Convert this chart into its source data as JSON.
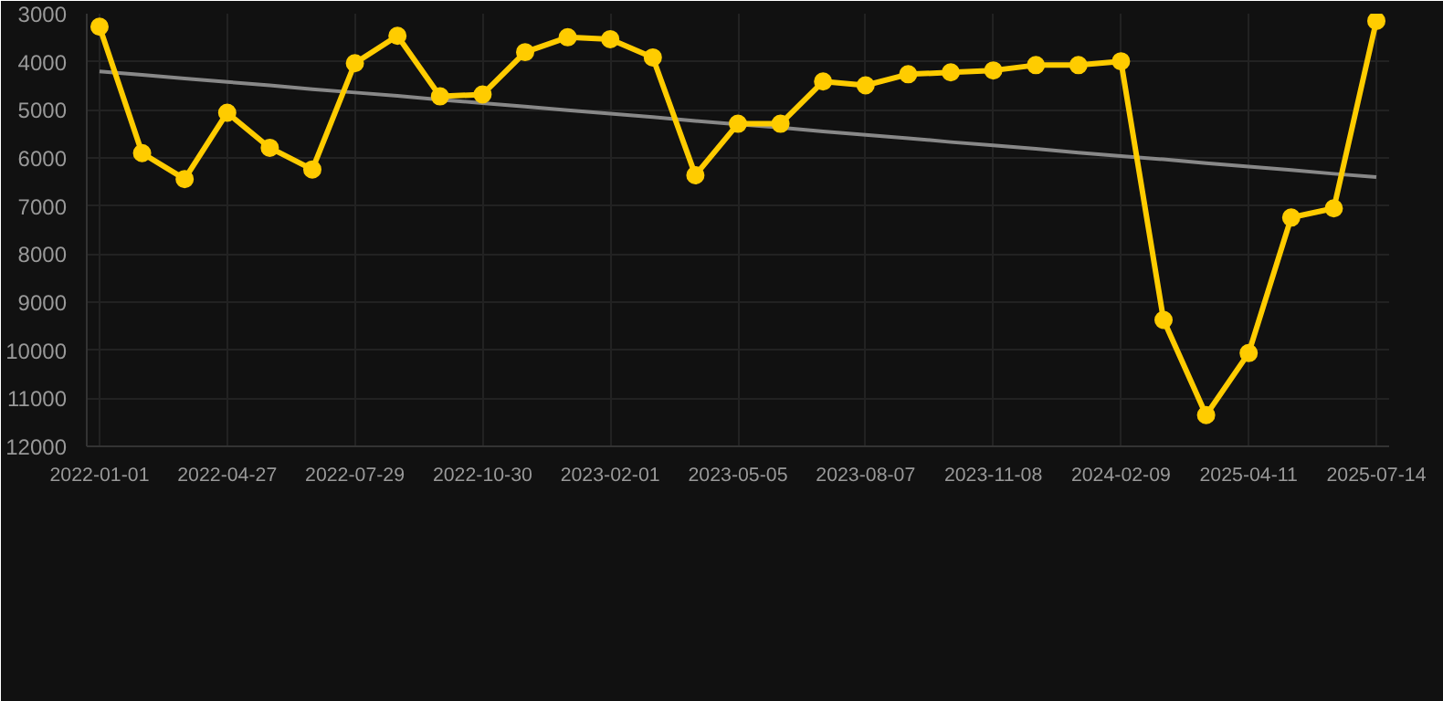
{
  "chart_data": {
    "type": "line",
    "categories": [
      "2022-01-01",
      null,
      null,
      "2022-04-27",
      null,
      null,
      "2022-07-29",
      null,
      null,
      "2022-10-30",
      null,
      null,
      "2023-02-01",
      null,
      null,
      "2023-05-05",
      null,
      null,
      "2023-08-07",
      null,
      null,
      "2023-11-08",
      null,
      null,
      "2024-02-09",
      null,
      null,
      "2025-04-11",
      null,
      null,
      "2025-07-14"
    ],
    "series": [
      {
        "color": "#ffcc00",
        "marker": "circle",
        "values": [
          3270,
          5900,
          6440,
          5060,
          5790,
          6240,
          4030,
          3460,
          4720,
          4680,
          3800,
          3490,
          3530,
          3910,
          6360,
          5290,
          5290,
          4410,
          4490,
          4260,
          4220,
          4180,
          4070,
          4070,
          3990,
          9370,
          11350,
          10060,
          7240,
          7050,
          3150
        ]
      },
      {
        "type": "line",
        "color": "#888888",
        "marker": "none",
        "values": [
          4200,
          4270,
          4350,
          4420,
          4490,
          4570,
          4640,
          4710,
          4790,
          4860,
          4930,
          5010,
          5080,
          5150,
          5230,
          5300,
          5370,
          5450,
          5520,
          5590,
          5670,
          5740,
          5810,
          5890,
          5960,
          6030,
          6110,
          6180,
          6250,
          6330,
          6400
        ]
      }
    ],
    "ylim": [
      12000,
      3000
    ],
    "yticks": [
      3000,
      4000,
      5000,
      6000,
      7000,
      8000,
      9000,
      10000,
      11000,
      12000
    ],
    "grid": true
  }
}
